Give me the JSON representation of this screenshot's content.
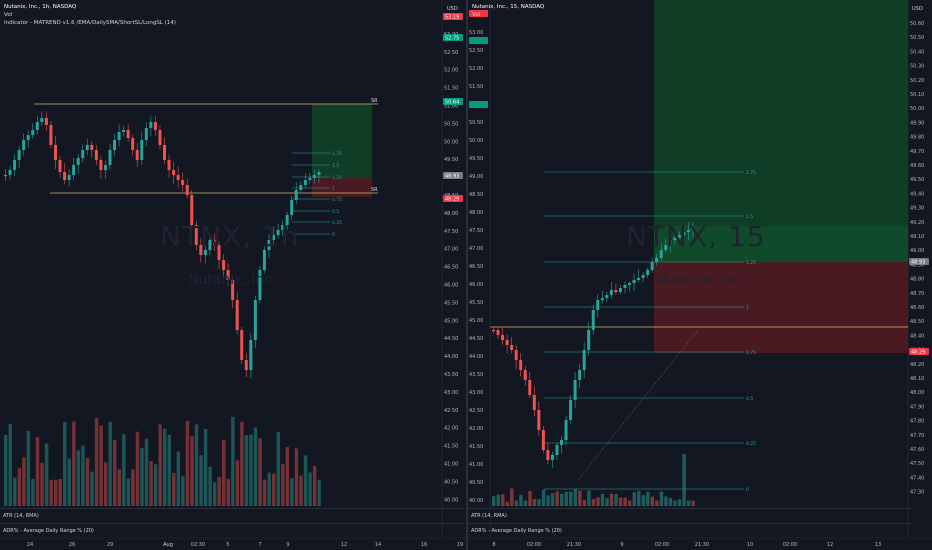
{
  "left": {
    "title": "Nutanix, Inc., 1h, NASDAQ",
    "vol_label": "Vol",
    "indicator_label": "Indicator - ",
    "indicator_name": "MATREND v1.6 /EMA/DailySMA/ShortSL/LongSL (14)",
    "watermark": "NTNX, 1h",
    "watermark_sub": "Nutanix, Inc.",
    "currency": "USD",
    "price_ticks": [
      "53.50",
      "53.00",
      "52.50",
      "52.00",
      "51.50",
      "51.00",
      "50.50",
      "50.00",
      "49.50",
      "49.00",
      "48.50",
      "48.00",
      "47.50",
      "47.00",
      "46.50",
      "46.00",
      "45.50",
      "45.00",
      "44.50",
      "44.00",
      "43.50",
      "43.00",
      "42.50",
      "42.00",
      "41.50",
      "41.00",
      "40.50",
      "40.00"
    ],
    "price_tags": [
      {
        "text": "53.19",
        "color": "#f23645"
      },
      {
        "text": "52.75",
        "color": "#089981"
      },
      {
        "text": "50.64",
        "color": "#089981"
      },
      {
        "text": "48.93",
        "color": "#787b86"
      },
      {
        "text": "48.29",
        "color": "#f23645"
      }
    ],
    "time_ticks": [
      "24",
      "26",
      "29",
      "Aug",
      "02:30",
      "5",
      "7",
      "9",
      "12",
      "14",
      "16",
      "19"
    ],
    "fib_labels": [
      "1.75",
      "1.5",
      "1.25",
      "1",
      "0.75",
      "0.5",
      "0.25",
      "0"
    ],
    "sr_labels": [
      "SR",
      "SR"
    ],
    "atr_label": "ATR (14, RMA)",
    "adr_label": "ADR% - Average Daily Range % (20)"
  },
  "right": {
    "title": "Nutanix, Inc., 15, NASDAQ",
    "vol_label": "Vol",
    "watermark": "NTNX, 15",
    "watermark_sub": "Nutanix, Inc.",
    "currency": "USD",
    "price_ticks": [
      "50.60",
      "50.50",
      "50.40",
      "50.30",
      "50.20",
      "50.10",
      "50.00",
      "49.90",
      "49.80",
      "49.70",
      "49.60",
      "49.50",
      "49.40",
      "49.30",
      "49.20",
      "49.10",
      "49.00",
      "48.90",
      "48.80",
      "48.70",
      "48.60",
      "48.50",
      "48.40",
      "48.30",
      "48.20",
      "48.10",
      "48.00",
      "47.90",
      "47.80",
      "47.70",
      "47.60",
      "47.50",
      "47.40",
      "47.30"
    ],
    "price_tags": [
      {
        "text": "48.93",
        "color": "#787b86"
      },
      {
        "text": "48.29",
        "color": "#f23645"
      }
    ],
    "time_ticks": [
      "8",
      "02:00",
      "21:30",
      "9",
      "02:00",
      "21:30",
      "10",
      "02:00",
      "12",
      "13"
    ],
    "fib_labels": [
      "1.75",
      "1.5",
      "1.25",
      "1",
      "0.75",
      "0.5",
      "0.25",
      "0"
    ],
    "atr_label": "ATR (14, RMA)",
    "adr_label": "ADR% - Average Daily Range % (20)"
  },
  "colors": {
    "background": "#131722",
    "up": "#089981",
    "down": "#f23645",
    "candle_up": "#26a69a",
    "candle_down": "#ef5350",
    "sr_line": "#d9b36a",
    "fib_line": "#26a69a",
    "target_zone": "#0f3d26",
    "stop_zone": "#4a1a22"
  }
}
